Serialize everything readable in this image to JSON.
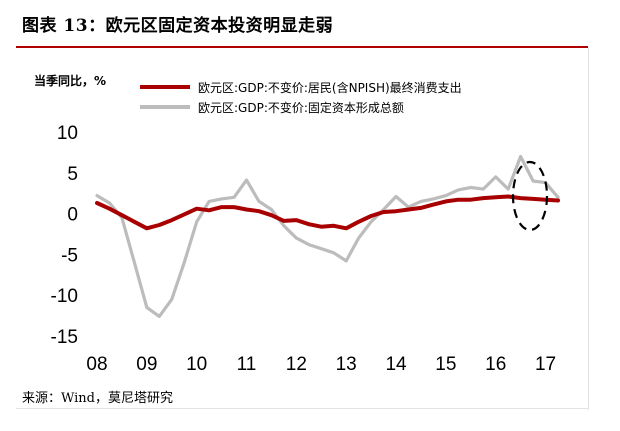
{
  "title": "图表 13：欧元区固定资本投资明显走弱",
  "source": "来源：Wind，莫尼塔研究",
  "chart_data": {
    "type": "line",
    "ylabel": "当季同比，%",
    "ylim": [
      -15,
      10
    ],
    "yticks": [
      10,
      5,
      0,
      -5,
      -10,
      -15
    ],
    "xtick_labels": [
      "08",
      "09",
      "10",
      "11",
      "12",
      "13",
      "14",
      "15",
      "16",
      "17"
    ],
    "x": [
      2008.0,
      2008.25,
      2008.5,
      2008.75,
      2009.0,
      2009.25,
      2009.5,
      2009.75,
      2010.0,
      2010.25,
      2010.5,
      2010.75,
      2011.0,
      2011.25,
      2011.5,
      2011.75,
      2012.0,
      2012.25,
      2012.5,
      2012.75,
      2013.0,
      2013.25,
      2013.5,
      2013.75,
      2014.0,
      2014.25,
      2014.5,
      2014.75,
      2015.0,
      2015.25,
      2015.5,
      2015.75,
      2016.0,
      2016.25,
      2016.5,
      2016.75,
      2017.0,
      2017.25
    ],
    "grid": false,
    "legend_position": "top",
    "series": [
      {
        "name": "欧元区:GDP:不变价:居民(含NPISH)最终消费支出",
        "color": "#a80000",
        "values": [
          1.3,
          0.6,
          -0.2,
          -1.0,
          -1.8,
          -1.4,
          -0.8,
          -0.1,
          0.6,
          0.4,
          0.8,
          0.8,
          0.5,
          0.3,
          -0.2,
          -0.9,
          -0.8,
          -1.3,
          -1.6,
          -1.5,
          -1.8,
          -1.0,
          -0.3,
          0.2,
          0.3,
          0.5,
          0.7,
          1.1,
          1.5,
          1.7,
          1.7,
          1.9,
          2.0,
          2.1,
          1.9,
          1.8,
          1.7,
          1.6
        ]
      },
      {
        "name": "欧元区:GDP:不变价:固定资本形成总额",
        "color": "#bcbcbc",
        "values": [
          2.2,
          1.3,
          -0.5,
          -6.0,
          -11.5,
          -12.6,
          -10.5,
          -6.0,
          -1.0,
          1.5,
          1.8,
          2.0,
          4.1,
          1.5,
          0.5,
          -1.5,
          -3.0,
          -3.8,
          -4.3,
          -4.8,
          -5.8,
          -3.0,
          -1.0,
          0.5,
          2.1,
          0.8,
          1.5,
          1.8,
          2.2,
          2.9,
          3.2,
          3.0,
          4.5,
          3.0,
          7.0,
          4.0,
          3.8,
          2.0
        ]
      }
    ]
  }
}
